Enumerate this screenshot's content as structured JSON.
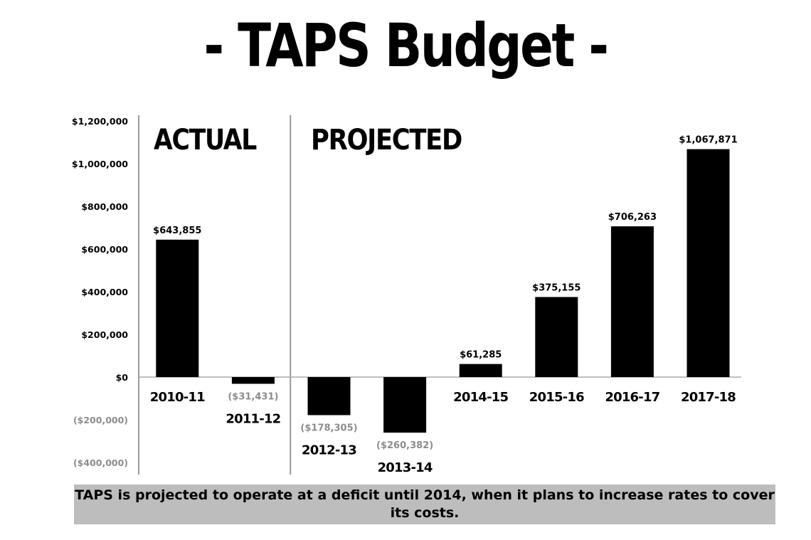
{
  "title": "- TAPS Budget -",
  "caption": "TAPS is projected to operate at a deficit until 2014, when it plans to increase rates to cover its costs.",
  "colors": {
    "bar": "#000000",
    "negative_label": "#8c8c8c",
    "divider": "#999999",
    "caption_bg": "#bdbdbd"
  },
  "chart_data": {
    "type": "bar",
    "title": "- TAPS Budget -",
    "xlabel": "",
    "ylabel": "",
    "ylim": [
      -400000,
      1200000
    ],
    "yticks": [
      1200000,
      1000000,
      800000,
      600000,
      400000,
      200000,
      0,
      -200000,
      -400000
    ],
    "ytick_labels": [
      "$1,200,000",
      "$1,000,000",
      "$800,000",
      "$600,000",
      "$400,000",
      "$200,000",
      "$0",
      "($200,000)",
      "($400,000)"
    ],
    "categories": [
      "2010-11",
      "2011-12",
      "2012-13",
      "2013-14",
      "2014-15",
      "2015-16",
      "2016-17",
      "2017-18"
    ],
    "values": [
      643855,
      -31431,
      -178305,
      -260382,
      61285,
      375155,
      706263,
      1067871
    ],
    "data_labels": [
      "$643,855",
      "($31,431)",
      "($178,305)",
      "($260,382)",
      "$61,285",
      "$375,155",
      "$706,263",
      "$1,067,871"
    ],
    "sections": [
      {
        "label": "ACTUAL",
        "start": 0
      },
      {
        "label": "PROJECTED",
        "start": 2
      }
    ],
    "grid": false,
    "legend": "none"
  }
}
